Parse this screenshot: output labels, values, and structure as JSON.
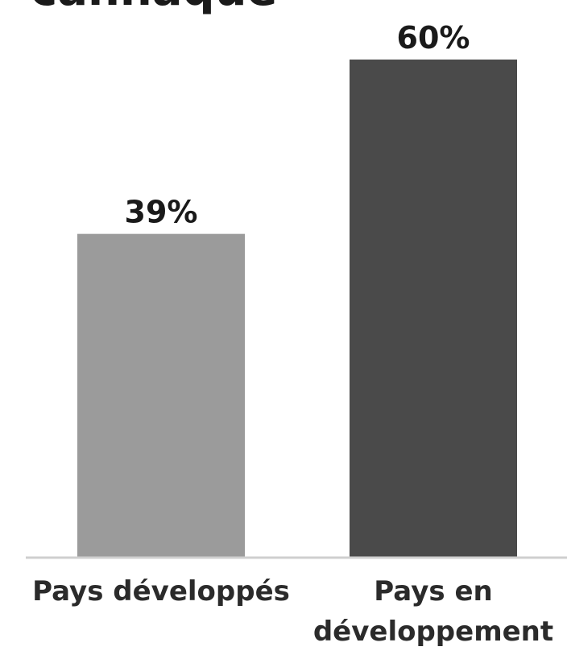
{
  "chart_data": {
    "type": "bar",
    "title": "cannaque",
    "categories": [
      "Pays développés",
      "Pays en développement"
    ],
    "category_lines": [
      [
        "Pays développés"
      ],
      [
        "Pays en",
        "développement"
      ]
    ],
    "values": [
      39,
      60
    ],
    "value_labels": [
      "39%",
      "60%"
    ],
    "colors": [
      "#9b9b9b",
      "#4a4a4a"
    ],
    "ylim": [
      0,
      60
    ],
    "grid": false,
    "legend": "none"
  }
}
